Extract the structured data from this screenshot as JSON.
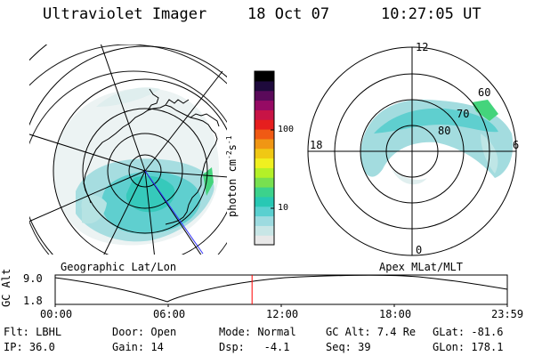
{
  "header": {
    "instrument": "Ultraviolet Imager",
    "date": "18 Oct 07",
    "time": "10:27:05 UT"
  },
  "colorbar": {
    "label": "photon cm",
    "label_exp1": "-2",
    "label_mid": "s",
    "label_exp2": "-1",
    "ticks": [
      "100",
      "10"
    ],
    "scale": "log",
    "colors": [
      "#e8e8e8",
      "#c8e6e6",
      "#9ddbe0",
      "#5ad0d0",
      "#28c8b4",
      "#3cd28c",
      "#78e050",
      "#b4f028",
      "#f0f020",
      "#f0c814",
      "#f09614",
      "#f05a14",
      "#e61e1e",
      "#c81446",
      "#960a64",
      "#5a0a5a",
      "#1e0a3c",
      "#000000"
    ]
  },
  "geo_map": {
    "caption": "Geographic Lat/Lon"
  },
  "mlt_map": {
    "caption": "Apex MLat/MLT",
    "mlt_labels": {
      "top": "12",
      "bottom": "0",
      "left": "18",
      "right": "6"
    },
    "lat_labels": [
      "60",
      "70",
      "80"
    ]
  },
  "altitude_plot": {
    "ylabel": "GC Alt",
    "yticks": [
      "9.0",
      "1.8"
    ],
    "xticks": [
      "00:00",
      "06:00",
      "12:00",
      "18:00",
      "23:59"
    ],
    "current_time_hours": 10.45,
    "marker_color": "#ff0000"
  },
  "status": {
    "filter_label": "Flt:",
    "filter_value": "LBHL",
    "door_label": "Door:",
    "door_value": "Open",
    "mode_label": "Mode:",
    "mode_value": "Normal",
    "gcalt_label": "GC Alt:",
    "gcalt_value": "7.4 Re",
    "glat_label": "GLat:",
    "glat_value": "-81.6",
    "ip_label": "IP:",
    "ip_value": "36.0",
    "gain_label": "Gain:",
    "gain_value": "14",
    "dsp_label": "Dsp:",
    "dsp_value": "-4.1",
    "seq_label": "Seq:",
    "seq_value": "39",
    "glon_label": "GLon:",
    "glon_value": "178.1"
  }
}
